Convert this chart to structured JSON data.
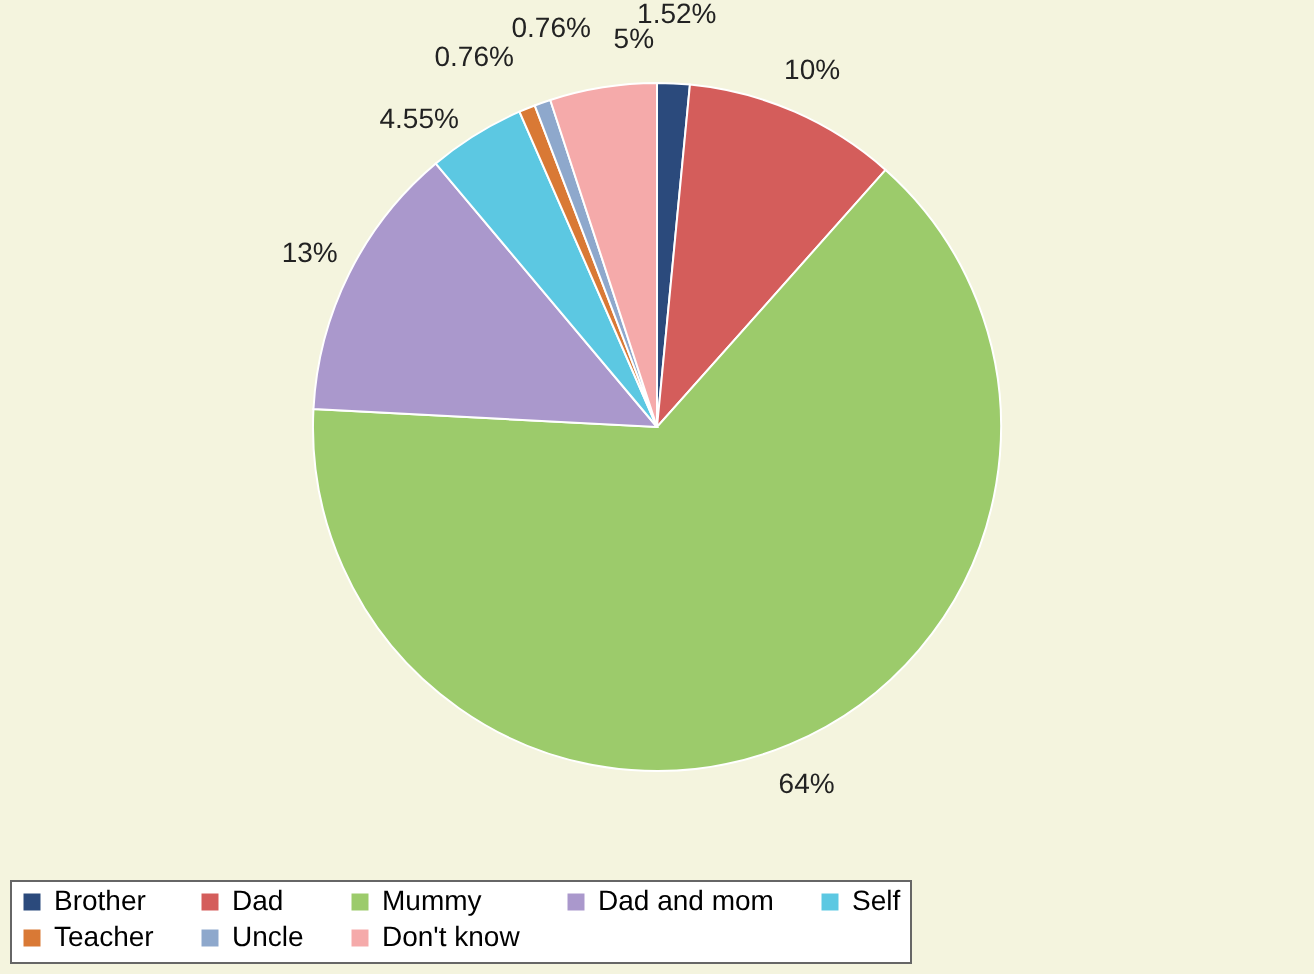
{
  "chart_data": {
    "type": "pie",
    "categories": [
      "Brother",
      "Dad",
      "Mummy",
      "Dad and mom",
      "Self",
      "Teacher",
      "Uncle",
      "Don't know"
    ],
    "values": [
      1.52,
      10,
      64,
      13,
      4.55,
      0.76,
      0.76,
      5
    ],
    "value_labels": [
      "1.52%",
      "10%",
      "64%",
      "13%",
      "4.55%",
      "0.76%",
      "0.76%",
      "5%"
    ],
    "colors": [
      "#2b4a7c",
      "#d45d5b",
      "#9ccb6b",
      "#aa98cc",
      "#5cc8e2",
      "#d97935",
      "#8ea8cc",
      "#f5aaaa"
    ],
    "legend": "bottom"
  }
}
